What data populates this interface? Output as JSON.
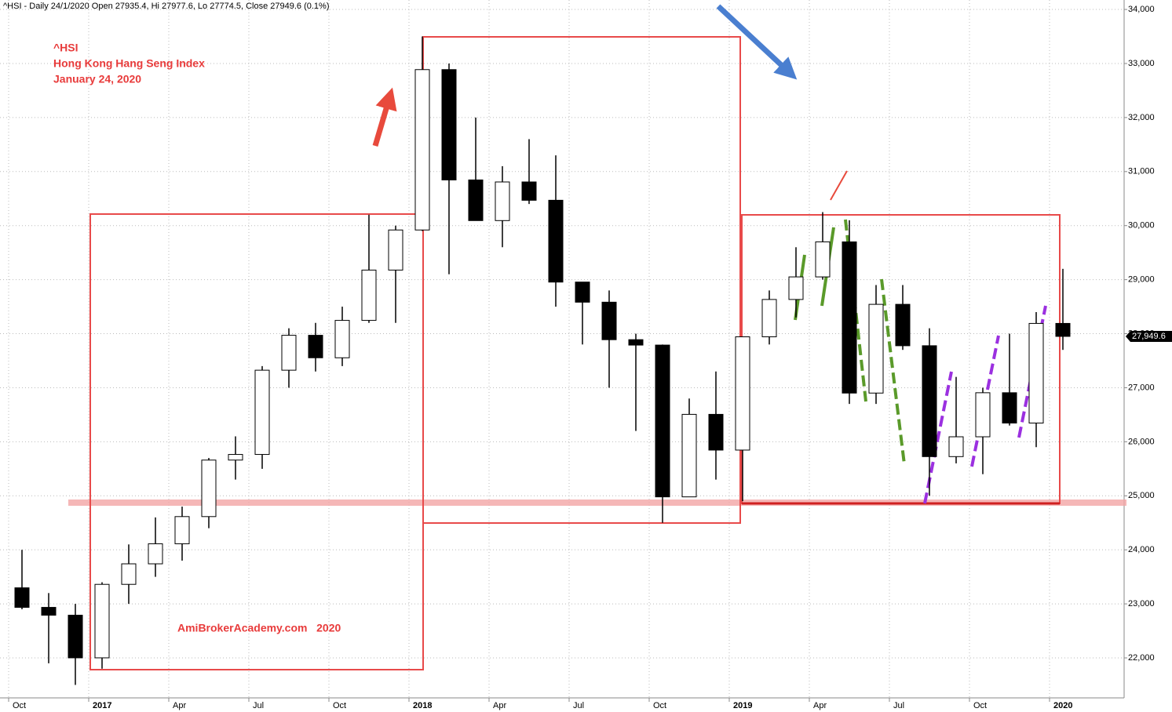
{
  "chart_data": {
    "type": "candlestick",
    "header": "^HSI - Daily 24/1/2020 Open 27935.4, Hi 27977.6, Lo 27774.5, Close 27949.6 (0.1%)",
    "annotations": [
      "^HSI",
      "Hong Kong Hang Seng Index",
      "January 24, 2020",
      "AmiBrokerAcademy.com   2020"
    ],
    "x": [
      "2016-10",
      "2016-11",
      "2016-12",
      "2017-01",
      "2017-02",
      "2017-03",
      "2017-04",
      "2017-05",
      "2017-06",
      "2017-07",
      "2017-08",
      "2017-09",
      "2017-10",
      "2017-11",
      "2017-12",
      "2018-01",
      "2018-02",
      "2018-03",
      "2018-04",
      "2018-05",
      "2018-06",
      "2018-07",
      "2018-08",
      "2018-09",
      "2018-10",
      "2018-11",
      "2018-12",
      "2019-01",
      "2019-02",
      "2019-03",
      "2019-04",
      "2019-05",
      "2019-06",
      "2019-07",
      "2019-08",
      "2019-09",
      "2019-10",
      "2019-11",
      "2019-12",
      "2020-01"
    ],
    "open": [
      23297,
      22935,
      22790,
      22001,
      23361,
      23741,
      24112,
      24615,
      25661,
      25765,
      27324,
      27970,
      27554,
      28246,
      29177,
      29919,
      32887,
      30845,
      30093,
      30808,
      30469,
      28955,
      28583,
      27889,
      27789,
      24980,
      26507,
      25846,
      27942,
      28633,
      29051,
      29699,
      26901,
      28543,
      27777,
      25725,
      26092,
      26907,
      26346,
      28190
    ],
    "high": [
      24000,
      23200,
      23000,
      23400,
      24100,
      24600,
      24800,
      25700,
      26100,
      27400,
      28100,
      28200,
      28500,
      30200,
      30000,
      33500,
      33000,
      32000,
      31100,
      31600,
      31300,
      28900,
      28800,
      28000,
      27800,
      26800,
      27300,
      27900,
      28800,
      29600,
      30250,
      30100,
      28900,
      28900,
      28100,
      27200,
      27000,
      28000,
      28400,
      29200
    ],
    "low": [
      22900,
      21900,
      21500,
      21800,
      23000,
      23500,
      23800,
      24400,
      25300,
      25500,
      27000,
      27300,
      27400,
      28200,
      28200,
      29900,
      29100,
      30100,
      29600,
      30400,
      28500,
      27800,
      27000,
      26200,
      24500,
      25000,
      25300,
      24900,
      27800,
      28300,
      29000,
      26700,
      26700,
      27700,
      25000,
      25600,
      25400,
      26300,
      25900,
      27700
    ],
    "close": [
      22935,
      22790,
      22001,
      23361,
      23741,
      24112,
      24615,
      25661,
      25765,
      27324,
      27970,
      27554,
      28246,
      29177,
      29919,
      32887,
      30845,
      30093,
      30808,
      30469,
      28955,
      28583,
      27889,
      27789,
      24980,
      26507,
      25846,
      27942,
      28633,
      29051,
      29699,
      26901,
      28543,
      27777,
      25725,
      26092,
      26907,
      26346,
      28190,
      27950
    ],
    "ylim": [
      21260,
      34175
    ],
    "yticks": [
      {
        "value": 22000,
        "label": "22,000"
      },
      {
        "value": 23000,
        "label": "23,000"
      },
      {
        "value": 24000,
        "label": "24,000"
      },
      {
        "value": 25000,
        "label": "25,000"
      },
      {
        "value": 26000,
        "label": "26,000"
      },
      {
        "value": 27000,
        "label": "27,000"
      },
      {
        "value": 28000,
        "label": "28,000"
      },
      {
        "value": 29000,
        "label": "29,000"
      },
      {
        "value": 30000,
        "label": "30,000"
      },
      {
        "value": 31000,
        "label": "31,000"
      },
      {
        "value": 32000,
        "label": "32,000"
      },
      {
        "value": 33000,
        "label": "33,000"
      },
      {
        "value": 34000,
        "label": "34,000"
      }
    ],
    "xticks": [
      {
        "value": "2016-10",
        "label": "Oct"
      },
      {
        "value": "2017-01",
        "label": "2017"
      },
      {
        "value": "2017-04",
        "label": "Apr"
      },
      {
        "value": "2017-07",
        "label": "Jul"
      },
      {
        "value": "2017-10",
        "label": "Oct"
      },
      {
        "value": "2018-01",
        "label": "2018"
      },
      {
        "value": "2018-04",
        "label": "Apr"
      },
      {
        "value": "2018-07",
        "label": "Jul"
      },
      {
        "value": "2018-10",
        "label": "Oct"
      },
      {
        "value": "2019-01",
        "label": "2019"
      },
      {
        "value": "2019-04",
        "label": "Apr"
      },
      {
        "value": "2019-07",
        "label": "Jul"
      },
      {
        "value": "2019-10",
        "label": "Oct"
      },
      {
        "value": "2020-01",
        "label": "2020"
      }
    ],
    "last_price": {
      "value": 27949.6,
      "label": "27,949.6"
    },
    "grid": true,
    "color": "#000000"
  }
}
